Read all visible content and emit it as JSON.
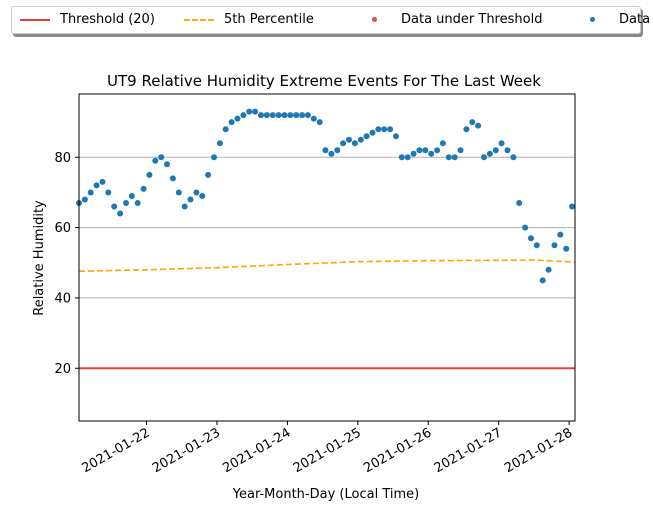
{
  "legend": {
    "threshold_label": "Threshold (20)",
    "percentile_label": "5th Percentile",
    "under_label": "Data under Threshold",
    "data_label": "Data"
  },
  "colors": {
    "threshold": "#e8403a",
    "percentile": "#ffa500",
    "under": "#d9534f",
    "data": "#1f77b4",
    "grid": "#b0b0b0"
  },
  "chart_data": {
    "type": "scatter",
    "title": "UT9 Relative Humidity Extreme Events For The Last Week",
    "xlabel": "Year-Month-Day (Local Time)",
    "ylabel": "Relative Humidity",
    "xlim": [
      "2021-01-21 01:00",
      "2021-01-28 02:00"
    ],
    "ylim": [
      5,
      98
    ],
    "x_tick_labels": [
      "2021-01-22",
      "2021-01-23",
      "2021-01-24",
      "2021-01-25",
      "2021-01-26",
      "2021-01-27",
      "2021-01-28"
    ],
    "y_ticks": [
      20,
      40,
      60,
      80
    ],
    "grid": "horizontal",
    "legend_position": "top-center",
    "threshold": {
      "name": "Threshold (20)",
      "value": 20
    },
    "percentile_5th": {
      "name": "5th Percentile",
      "x": [
        "2021-01-21 01:00",
        "2021-01-22 00:00",
        "2021-01-23 00:00",
        "2021-01-24 00:00",
        "2021-01-25 00:00",
        "2021-01-26 00:00",
        "2021-01-27 00:00",
        "2021-01-27 12:00",
        "2021-01-28 02:00"
      ],
      "y": [
        47.6,
        48.0,
        48.6,
        49.5,
        50.3,
        50.6,
        50.7,
        50.8,
        50.2
      ]
    },
    "data_under_threshold": {
      "name": "Data under Threshold",
      "x": [],
      "y": []
    },
    "series": [
      {
        "name": "Data",
        "x": [
          "2021-01-21 01:00",
          "2021-01-21 03:00",
          "2021-01-21 05:00",
          "2021-01-21 07:00",
          "2021-01-21 09:00",
          "2021-01-21 11:00",
          "2021-01-21 13:00",
          "2021-01-21 15:00",
          "2021-01-21 17:00",
          "2021-01-21 19:00",
          "2021-01-21 21:00",
          "2021-01-21 23:00",
          "2021-01-22 01:00",
          "2021-01-22 03:00",
          "2021-01-22 05:00",
          "2021-01-22 07:00",
          "2021-01-22 09:00",
          "2021-01-22 11:00",
          "2021-01-22 13:00",
          "2021-01-22 15:00",
          "2021-01-22 17:00",
          "2021-01-22 19:00",
          "2021-01-22 21:00",
          "2021-01-22 23:00",
          "2021-01-23 01:00",
          "2021-01-23 03:00",
          "2021-01-23 05:00",
          "2021-01-23 07:00",
          "2021-01-23 09:00",
          "2021-01-23 11:00",
          "2021-01-23 13:00",
          "2021-01-23 15:00",
          "2021-01-23 17:00",
          "2021-01-23 19:00",
          "2021-01-23 21:00",
          "2021-01-23 23:00",
          "2021-01-24 01:00",
          "2021-01-24 03:00",
          "2021-01-24 05:00",
          "2021-01-24 07:00",
          "2021-01-24 09:00",
          "2021-01-24 11:00",
          "2021-01-24 13:00",
          "2021-01-24 15:00",
          "2021-01-24 17:00",
          "2021-01-24 19:00",
          "2021-01-24 21:00",
          "2021-01-24 23:00",
          "2021-01-25 01:00",
          "2021-01-25 03:00",
          "2021-01-25 05:00",
          "2021-01-25 07:00",
          "2021-01-25 09:00",
          "2021-01-25 11:00",
          "2021-01-25 13:00",
          "2021-01-25 15:00",
          "2021-01-25 17:00",
          "2021-01-25 19:00",
          "2021-01-25 21:00",
          "2021-01-25 23:00",
          "2021-01-26 01:00",
          "2021-01-26 03:00",
          "2021-01-26 05:00",
          "2021-01-26 07:00",
          "2021-01-26 09:00",
          "2021-01-26 11:00",
          "2021-01-26 13:00",
          "2021-01-26 15:00",
          "2021-01-26 17:00",
          "2021-01-26 19:00",
          "2021-01-26 21:00",
          "2021-01-26 23:00",
          "2021-01-27 01:00",
          "2021-01-27 03:00",
          "2021-01-27 05:00",
          "2021-01-27 07:00",
          "2021-01-27 09:00",
          "2021-01-27 11:00",
          "2021-01-27 13:00",
          "2021-01-27 15:00",
          "2021-01-27 17:00",
          "2021-01-27 19:00",
          "2021-01-27 21:00",
          "2021-01-27 23:00",
          "2021-01-28 01:00"
        ],
        "y": [
          67,
          68,
          70,
          72,
          73,
          70,
          66,
          64,
          67,
          69,
          67,
          71,
          75,
          79,
          80,
          78,
          74,
          70,
          66,
          68,
          70,
          69,
          75,
          80,
          84,
          88,
          90,
          91,
          92,
          93,
          93,
          92,
          92,
          92,
          92,
          92,
          92,
          92,
          92,
          92,
          91,
          90,
          82,
          81,
          82,
          84,
          85,
          84,
          85,
          86,
          87,
          88,
          88,
          88,
          86,
          80,
          80,
          81,
          82,
          82,
          81,
          82,
          84,
          80,
          80,
          82,
          88,
          90,
          89,
          80,
          81,
          82,
          84,
          82,
          80,
          67,
          60,
          57,
          55,
          45,
          48,
          55,
          58,
          54,
          66
        ]
      }
    ]
  }
}
